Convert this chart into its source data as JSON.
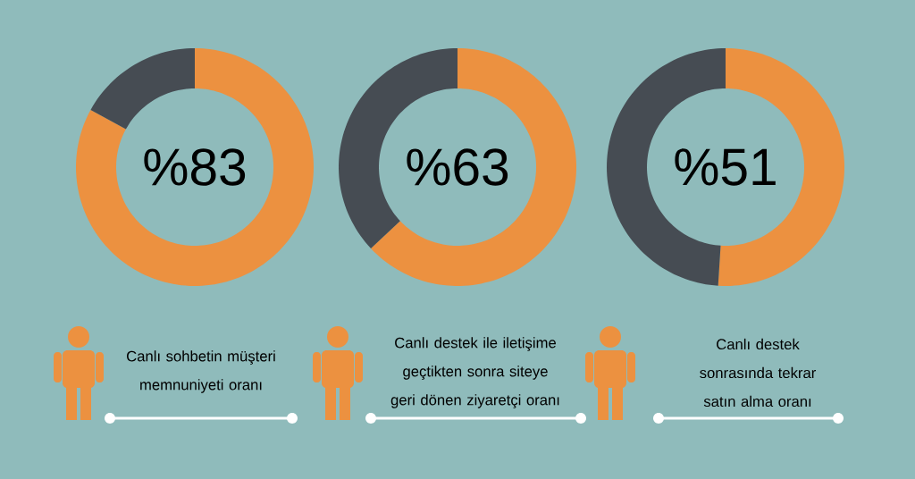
{
  "chart_data": [
    {
      "type": "donut",
      "values": [
        83,
        17
      ],
      "colors": [
        "#ec9140",
        "#464c53"
      ],
      "annotations": [
        "%83"
      ],
      "xlabel": "Canlı sohbetin müşteri memnuniyeti oranı"
    },
    {
      "type": "donut",
      "values": [
        63,
        37
      ],
      "colors": [
        "#ec9140",
        "#464c53"
      ],
      "annotations": [
        "%63"
      ],
      "xlabel": "Canlı destek ile iletişime geçtikten sonra siteye geri dönen ziyaretçi oranı"
    },
    {
      "type": "donut",
      "values": [
        51,
        49
      ],
      "colors": [
        "#ec9140",
        "#464c53"
      ],
      "annotations": [
        "%51"
      ],
      "xlabel": "Canlı destek sonrasında tekrar satın alma oranı"
    }
  ]
}
